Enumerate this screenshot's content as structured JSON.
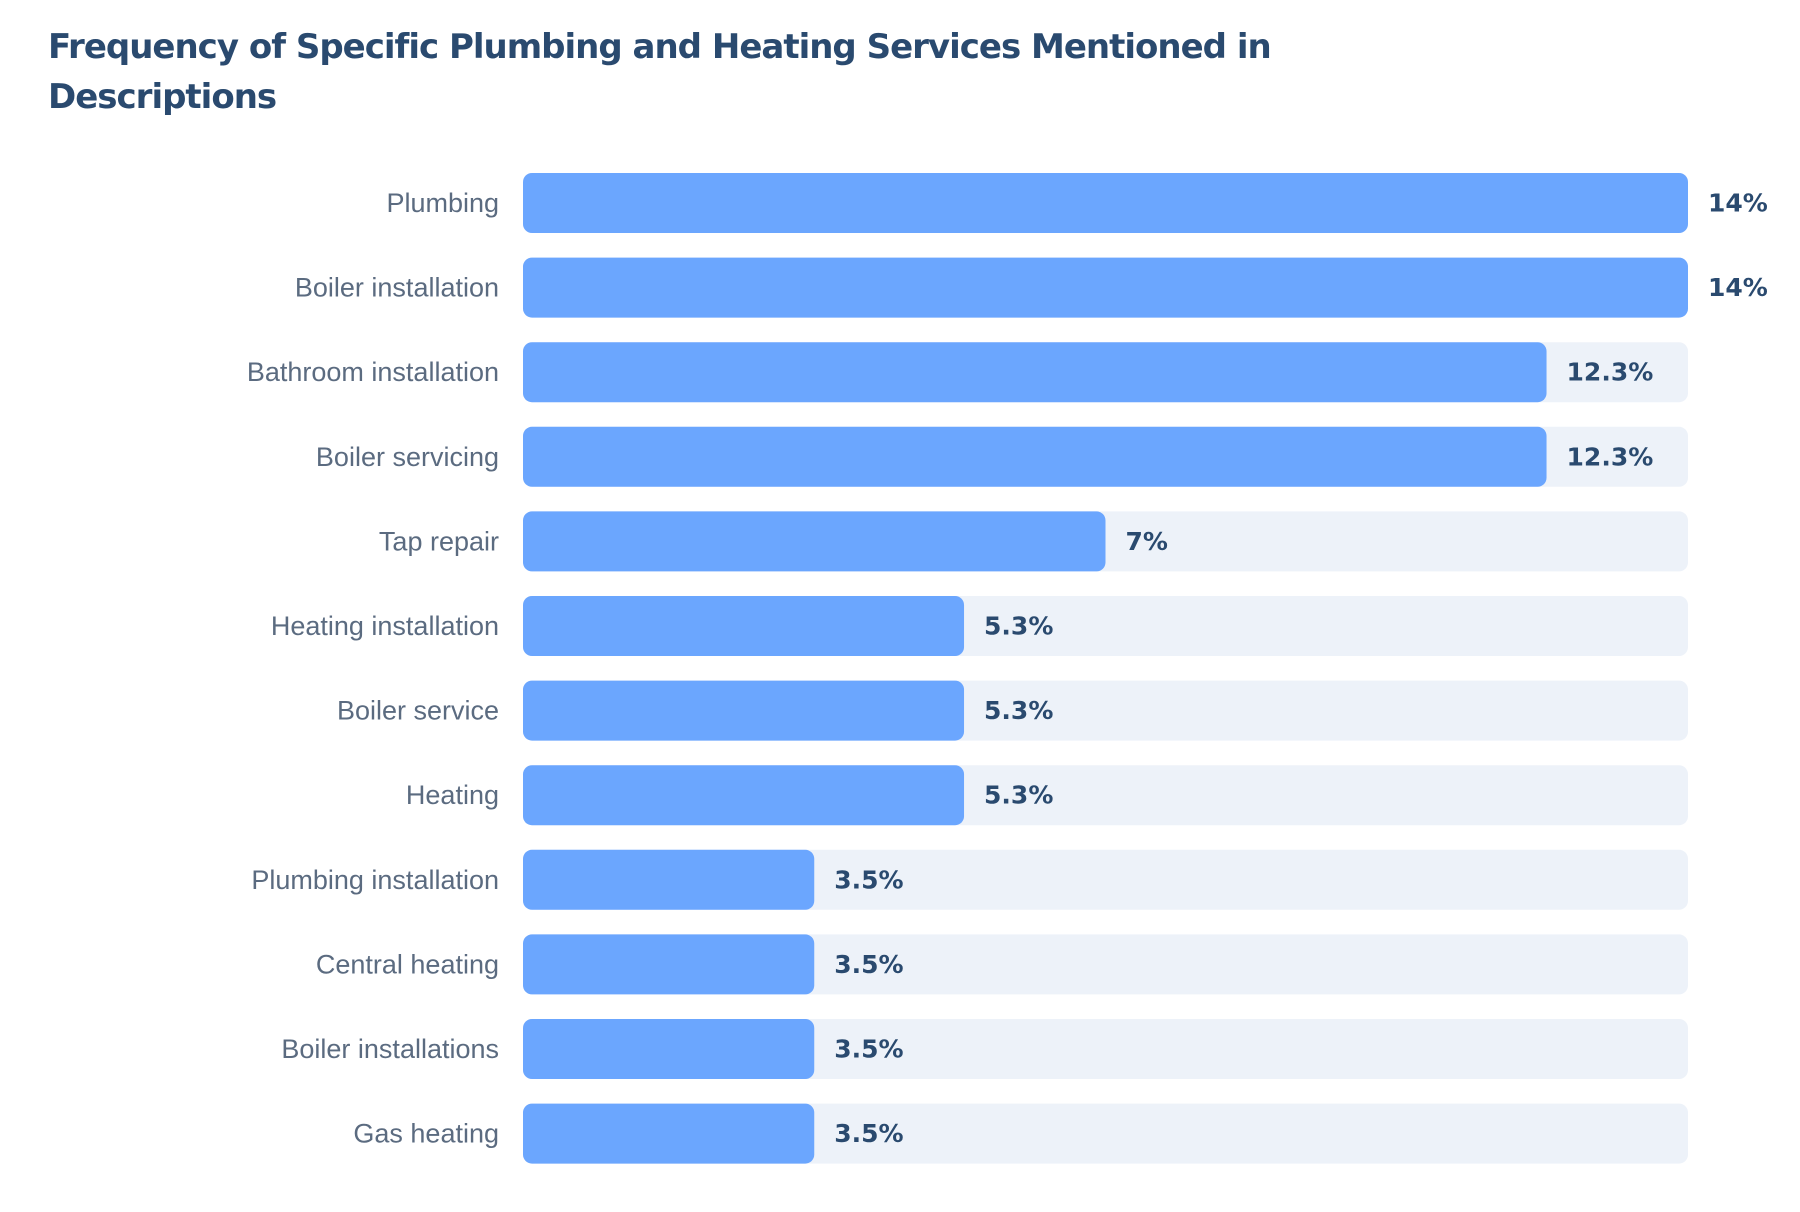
{
  "chart_data": {
    "type": "bar",
    "orientation": "horizontal",
    "title": "Frequency of Specific Plumbing and Heating Services Mentioned in Descriptions",
    "categories": [
      "Plumbing",
      "Boiler installation",
      "Bathroom installation",
      "Boiler servicing",
      "Tap repair",
      "Heating installation",
      "Boiler service",
      "Heating",
      "Plumbing installation",
      "Central heating",
      "Boiler installations",
      "Gas heating"
    ],
    "values": [
      14,
      14,
      12.3,
      12.3,
      7,
      5.3,
      5.3,
      5.3,
      3.5,
      3.5,
      3.5,
      3.5
    ],
    "value_labels": [
      "14%",
      "14%",
      "12.3%",
      "12.3%",
      "7%",
      "5.3%",
      "5.3%",
      "5.3%",
      "3.5%",
      "3.5%",
      "3.5%",
      "3.5%"
    ],
    "xlim": [
      0,
      14
    ],
    "grid": false,
    "colors": {
      "bar": "#6ba6fe",
      "track": "#edf2f9",
      "title": "#2a4a6f",
      "category_text": "#5b6b80",
      "value_text": "#2a4a6f"
    }
  }
}
